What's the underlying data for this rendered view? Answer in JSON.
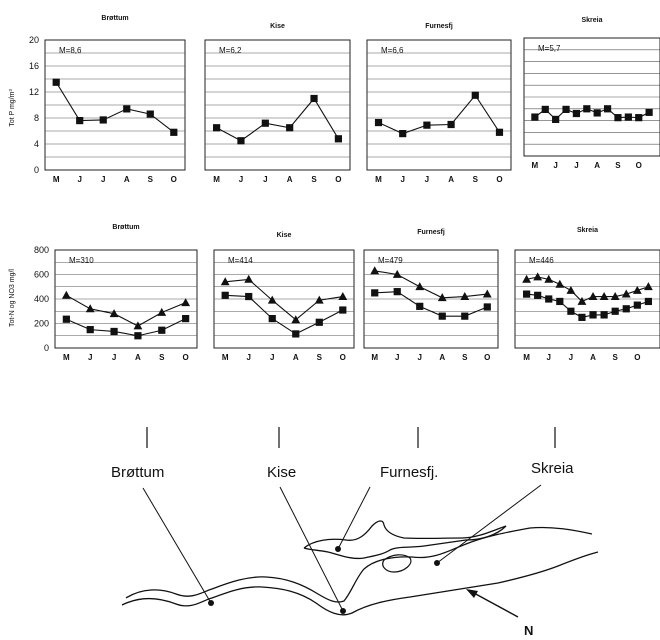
{
  "months": [
    "M",
    "J",
    "J",
    "A",
    "S",
    "O"
  ],
  "top_row": {
    "ylabel": "Tot P mg/m³",
    "yticks": [
      "20",
      "16",
      "12",
      "8",
      "4",
      "0"
    ]
  },
  "bottom_row": {
    "ylabel": "Tot-N og NO3 mg/l",
    "yticks": [
      "800",
      "600",
      "400",
      "200",
      "0"
    ]
  },
  "chart_data": [
    {
      "type": "line",
      "title": "Brøttum",
      "annotation": "M=8,6",
      "x": [
        "M",
        "J",
        "J",
        "A",
        "S",
        "O"
      ],
      "ylim": [
        0,
        20
      ],
      "series": [
        {
          "marker": "square",
          "values": [
            13.5,
            7.6,
            7.7,
            9.4,
            8.6,
            5.8
          ]
        }
      ]
    },
    {
      "type": "line",
      "title": "Kise",
      "annotation": "M=6,2",
      "x": [
        "M",
        "J",
        "J",
        "A",
        "S",
        "O"
      ],
      "ylim": [
        0,
        20
      ],
      "series": [
        {
          "marker": "square",
          "values": [
            6.5,
            4.5,
            7.2,
            6.5,
            11.0,
            4.8
          ]
        }
      ]
    },
    {
      "type": "line",
      "title": "Furnesfj",
      "annotation": "M=6,6",
      "x": [
        "M",
        "J",
        "J",
        "A",
        "S",
        "O"
      ],
      "ylim": [
        0,
        20
      ],
      "series": [
        {
          "marker": "square",
          "values": [
            7.3,
            5.6,
            6.9,
            7.0,
            11.5,
            5.8
          ]
        }
      ]
    },
    {
      "type": "line",
      "title": "Skreia",
      "annotation": "M=5,7",
      "x": [
        "M",
        "",
        "J",
        "",
        "J",
        "",
        "A",
        "",
        "S",
        "",
        "O",
        ""
      ],
      "ylim": [
        0,
        20
      ],
      "series": [
        {
          "marker": "square",
          "values": [
            6.6,
            7.9,
            6.2,
            7.9,
            7.2,
            8.0,
            7.3,
            8.0,
            6.5,
            6.6,
            6.5,
            7.4
          ]
        }
      ]
    },
    {
      "type": "line",
      "title": "Brøttum",
      "annotation": "M=310",
      "x": [
        "M",
        "J",
        "J",
        "A",
        "S",
        "O"
      ],
      "ylim": [
        0,
        800
      ],
      "series": [
        {
          "marker": "triangle",
          "values": [
            430,
            320,
            280,
            180,
            290,
            370
          ]
        },
        {
          "marker": "square",
          "values": [
            235,
            150,
            135,
            100,
            145,
            240
          ]
        }
      ]
    },
    {
      "type": "line",
      "title": "Kise",
      "annotation": "M=414",
      "x": [
        "M",
        "J",
        "J",
        "A",
        "S",
        "O"
      ],
      "ylim": [
        0,
        800
      ],
      "series": [
        {
          "marker": "triangle",
          "values": [
            540,
            560,
            390,
            230,
            390,
            420
          ]
        },
        {
          "marker": "square",
          "values": [
            430,
            420,
            240,
            115,
            210,
            310
          ]
        }
      ]
    },
    {
      "type": "line",
      "title": "Furnesfj",
      "annotation": "M=479",
      "x": [
        "M",
        "J",
        "J",
        "A",
        "S",
        "O"
      ],
      "ylim": [
        0,
        800
      ],
      "series": [
        {
          "marker": "triangle",
          "values": [
            630,
            600,
            500,
            410,
            420,
            440
          ]
        },
        {
          "marker": "square",
          "values": [
            450,
            460,
            340,
            260,
            260,
            335
          ]
        }
      ]
    },
    {
      "type": "line",
      "title": "Skreia",
      "annotation": "M=446",
      "x": [
        "M",
        "",
        "J",
        "",
        "J",
        "",
        "A",
        "",
        "S",
        "",
        "O",
        ""
      ],
      "ylim": [
        0,
        800
      ],
      "series": [
        {
          "marker": "triangle",
          "values": [
            560,
            580,
            560,
            520,
            470,
            380,
            420,
            420,
            420,
            440,
            470,
            500
          ]
        },
        {
          "marker": "square",
          "values": [
            440,
            430,
            400,
            380,
            300,
            250,
            270,
            270,
            300,
            320,
            350,
            380
          ]
        }
      ]
    }
  ],
  "map": {
    "labels": [
      "Brøttum",
      "Kise",
      "Furnesfj.",
      "Skreia"
    ],
    "north": "N"
  }
}
